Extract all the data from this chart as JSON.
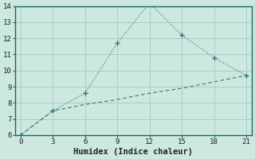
{
  "xlabel": "Humidex (Indice chaleur)",
  "background_color": "#cce8e0",
  "grid_color": "#aaccc4",
  "line_color": "#2a7a6a",
  "series1_x": [
    0,
    3,
    6,
    9,
    12,
    15,
    18,
    21
  ],
  "series1_y": [
    6.0,
    7.5,
    8.6,
    11.7,
    14.2,
    12.2,
    10.8,
    9.7
  ],
  "series2_x": [
    0,
    3,
    6,
    9,
    12,
    15,
    18,
    21
  ],
  "series2_y": [
    6.0,
    7.5,
    7.9,
    8.2,
    8.6,
    8.9,
    9.3,
    9.7
  ],
  "xlim": [
    -0.5,
    21.5
  ],
  "ylim": [
    6,
    14
  ],
  "xticks": [
    0,
    3,
    6,
    9,
    12,
    15,
    18,
    21
  ],
  "yticks": [
    6,
    7,
    8,
    9,
    10,
    11,
    12,
    13,
    14
  ],
  "tick_fontsize": 6.5,
  "xlabel_fontsize": 7.5,
  "spine_color": "#1a6a5a"
}
